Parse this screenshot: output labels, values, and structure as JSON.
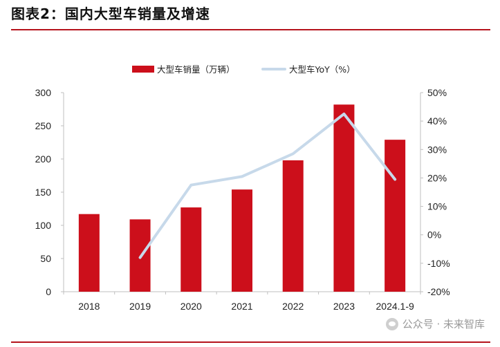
{
  "header": {
    "title": "图表2：国内大型车销量及增速"
  },
  "watermark": {
    "text": "公众号 · 未来智库"
  },
  "colors": {
    "bar": "#cc0f1b",
    "line": "#c7d9ea",
    "axis": "#bfbfbf",
    "rule": "#b5121b"
  },
  "chart_data": {
    "type": "bar",
    "categories": [
      "2018",
      "2019",
      "2020",
      "2021",
      "2022",
      "2023",
      "2024.1-9"
    ],
    "series": [
      {
        "name": "大型车销量（万辆）",
        "type": "bar",
        "axis": "left",
        "values": [
          117,
          109,
          127,
          154,
          198,
          282,
          229
        ]
      },
      {
        "name": "大型车YoY（%）",
        "type": "line",
        "axis": "right",
        "values": [
          null,
          -8,
          17.5,
          20.5,
          28.5,
          42.5,
          19.5
        ]
      }
    ],
    "y_left": {
      "ylim": [
        0,
        300
      ],
      "ticks": [
        "0",
        "50",
        "100",
        "150",
        "200",
        "250",
        "300"
      ]
    },
    "y_right": {
      "ylim": [
        -20,
        50
      ],
      "ticks": [
        "-20%",
        "-10%",
        "0%",
        "10%",
        "20%",
        "30%",
        "40%",
        "50%"
      ]
    },
    "legend": "top-center",
    "grid": false
  }
}
